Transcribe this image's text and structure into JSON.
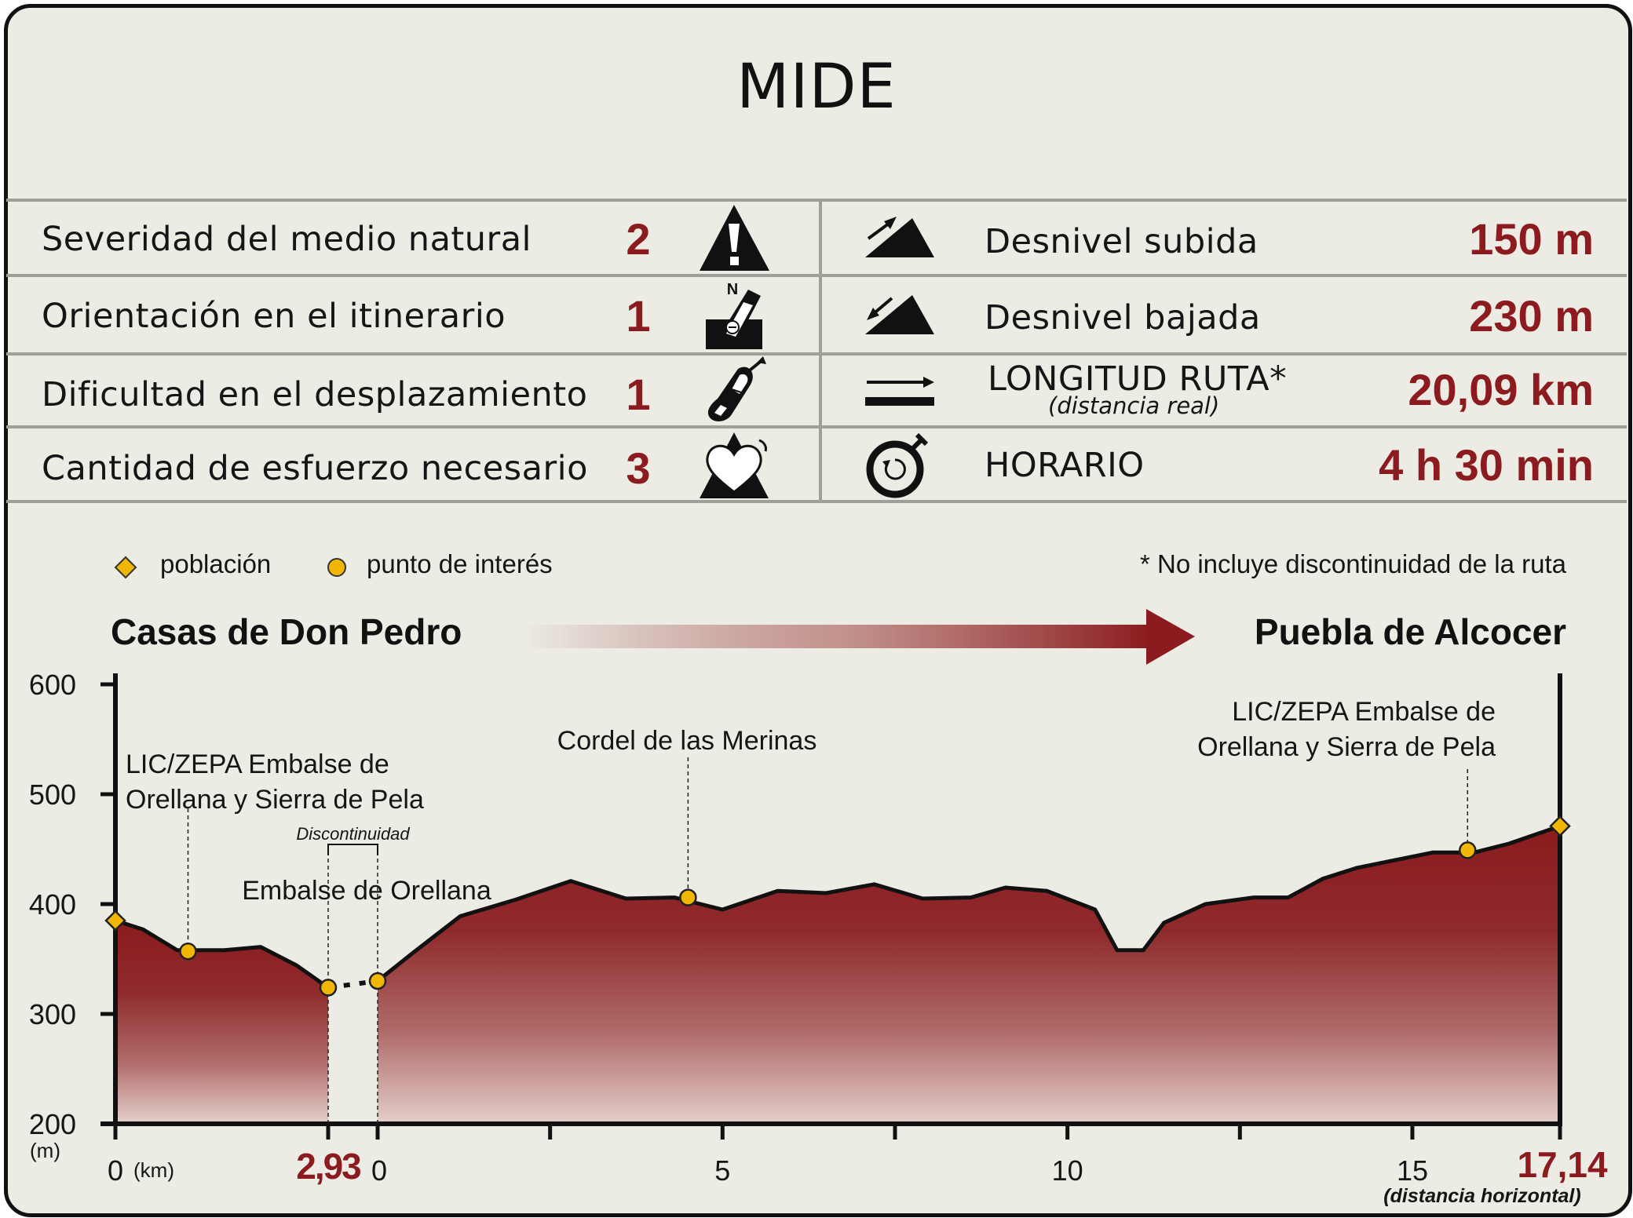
{
  "title": "MIDE",
  "mide": {
    "rows": [
      {
        "label": "Severidad del medio natural",
        "value": "2",
        "icon": "warning-triangle-icon"
      },
      {
        "label": "Orientación en el itinerario",
        "value": "1",
        "icon": "compass-orientation-icon"
      },
      {
        "label": "Dificultad en el desplazamiento",
        "value": "1",
        "icon": "footprint-icon"
      },
      {
        "label": "Cantidad de esfuerzo necesario",
        "value": "3",
        "icon": "heart-effort-icon"
      }
    ],
    "stats": [
      {
        "label": "Desnivel subida",
        "value": "150 m",
        "icon": "ascent-icon"
      },
      {
        "label": "Desnivel bajada",
        "value": "230 m",
        "icon": "descent-icon"
      },
      {
        "label": "LONGITUD RUTA*",
        "sublabel": "(distancia real)",
        "value": "20,09 km",
        "icon": "distance-arrow-icon"
      },
      {
        "label": "HORARIO",
        "value": "4 h 30 min",
        "icon": "stopwatch-icon"
      }
    ]
  },
  "legend": {
    "poblacion": "población",
    "punto": "punto de interés",
    "note": "* No incluye discontinuidad de la ruta"
  },
  "route": {
    "start": "Casas de Don Pedro",
    "end": "Puebla de Alcocer"
  },
  "colors": {
    "accent": "#8b1b1f",
    "marker": "#f2b705",
    "panel": "#ecebe4"
  },
  "chart_data": {
    "type": "area",
    "ylabel": "(m)",
    "xlabel": "(km)",
    "xlabel_note": "(distancia horizontal)",
    "ylim": [
      200,
      600
    ],
    "yticks": [
      200,
      300,
      400,
      500,
      600
    ],
    "segments": [
      {
        "x_range": [
          0,
          2.93
        ],
        "points": [
          [
            0,
            385
          ],
          [
            0.38,
            377
          ],
          [
            0.85,
            358
          ],
          [
            1.5,
            358
          ],
          [
            2.0,
            361
          ],
          [
            2.5,
            344
          ],
          [
            2.93,
            324
          ]
        ]
      },
      {
        "x_range": [
          0,
          17.14
        ],
        "points": [
          [
            0,
            330
          ],
          [
            0.5,
            355
          ],
          [
            1.2,
            389
          ],
          [
            2.0,
            404
          ],
          [
            2.8,
            421
          ],
          [
            3.6,
            405
          ],
          [
            4.3,
            406
          ],
          [
            5.0,
            395
          ],
          [
            5.8,
            412
          ],
          [
            6.5,
            410
          ],
          [
            7.2,
            418
          ],
          [
            7.9,
            405
          ],
          [
            8.6,
            406
          ],
          [
            9.1,
            415
          ],
          [
            9.7,
            412
          ],
          [
            10.4,
            395
          ],
          [
            10.72,
            358
          ],
          [
            11.1,
            358
          ],
          [
            11.4,
            383
          ],
          [
            12.0,
            400
          ],
          [
            12.7,
            406
          ],
          [
            13.2,
            406
          ],
          [
            13.7,
            423
          ],
          [
            14.2,
            433
          ],
          [
            15.3,
            447
          ],
          [
            15.9,
            447
          ],
          [
            16.4,
            455
          ],
          [
            17.14,
            471
          ]
        ]
      }
    ],
    "gap_label": "Discontinuidad",
    "gap_x_label": "2,93",
    "gap_restart_label": "0",
    "x_tick_labels": [
      "0",
      "5",
      "10",
      "15"
    ],
    "total_x_label": "17,14",
    "points_of_interest": [
      {
        "name": "LIC/ZEPA Embalse de Orellana y Sierra de Pela",
        "lines": [
          "LIC/ZEPA Embalse de",
          "Orellana y Sierra de Pela"
        ],
        "segment": 0,
        "x": 1.0,
        "y": 357,
        "kind": "punto"
      },
      {
        "name": "Embalse de Orellana",
        "lines": [
          "Embalse de Orellana"
        ],
        "segment": 0,
        "x": 2.93,
        "y": 324,
        "kind": "punto"
      },
      {
        "name": "Embalse de Orellana",
        "lines": [],
        "segment": 1,
        "x": 0,
        "y": 330,
        "kind": "punto"
      },
      {
        "name": "Cordel de las Merinas",
        "lines": [
          "Cordel de las Merinas"
        ],
        "segment": 1,
        "x": 4.5,
        "y": 406,
        "kind": "punto"
      },
      {
        "name": "LIC/ZEPA Embalse de Orellana y Sierra de Pela",
        "lines": [
          "LIC/ZEPA Embalse de",
          "Orellana y Sierra de Pela"
        ],
        "segment": 1,
        "x": 15.8,
        "y": 449,
        "kind": "punto"
      }
    ],
    "towns": [
      {
        "name": "Casas de Don Pedro",
        "segment": 0,
        "x": 0,
        "y": 385
      },
      {
        "name": "Puebla de Alcocer",
        "segment": 1,
        "x": 17.14,
        "y": 471
      }
    ]
  }
}
